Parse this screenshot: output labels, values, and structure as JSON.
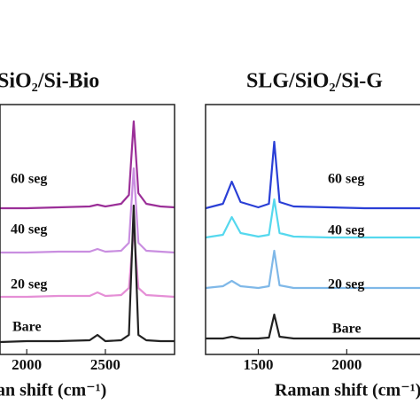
{
  "chart_data": [
    {
      "type": "line",
      "title": "SiO₂/Si-Bio",
      "x_label": "an shift (cm⁻¹)",
      "x": [
        1830,
        2000,
        2200,
        2400,
        2450,
        2500,
        2600,
        2650,
        2680,
        2710,
        2760,
        2850,
        2940
      ],
      "xlim": [
        1830,
        2940
      ],
      "xticks": [
        2000,
        2500
      ],
      "ylim": [
        0,
        282
      ],
      "series": [
        {
          "name": "60 seg",
          "color": "#9b2f98",
          "values": [
            165,
            165,
            166,
            167,
            169,
            167,
            170,
            180,
            263,
            182,
            170,
            167,
            166
          ]
        },
        {
          "name": "40 seg",
          "color": "#c98ee0",
          "values": [
            115,
            115,
            116,
            116,
            119,
            116,
            117,
            126,
            210,
            126,
            117,
            116,
            115
          ]
        },
        {
          "name": "20 seg",
          "color": "#e58fd6",
          "values": [
            65,
            65,
            66,
            66,
            70,
            66,
            67,
            75,
            142,
            75,
            67,
            66,
            65
          ]
        },
        {
          "name": "Bare",
          "color": "#222222",
          "values": [
            14,
            15,
            15,
            16,
            22,
            15,
            16,
            22,
            168,
            22,
            16,
            15,
            15
          ]
        }
      ]
    },
    {
      "type": "line",
      "title": "SLG/SiO₂/Si-G",
      "x_label": "Raman shift (cm⁻¹)",
      "x": [
        1202,
        1300,
        1350,
        1400,
        1500,
        1560,
        1590,
        1620,
        1700,
        1900,
        2100,
        2300,
        2424
      ],
      "xlim": [
        1202,
        2424
      ],
      "xticks": [
        1500,
        2000
      ],
      "ylim": [
        0,
        282
      ],
      "series": [
        {
          "name": "60 seg",
          "color": "#2a3fd6",
          "values": [
            165,
            170,
            195,
            172,
            166,
            170,
            240,
            172,
            167,
            166,
            165,
            165,
            165
          ]
        },
        {
          "name": "40 seg",
          "color": "#55d8ee",
          "values": [
            132,
            135,
            155,
            137,
            133,
            135,
            175,
            137,
            133,
            132,
            132,
            132,
            132
          ]
        },
        {
          "name": "20 seg",
          "color": "#7fb8e8",
          "values": [
            75,
            77,
            83,
            77,
            75,
            77,
            117,
            78,
            75,
            75,
            75,
            75,
            75
          ]
        },
        {
          "name": "Bare",
          "color": "#222222",
          "values": [
            18,
            18,
            20,
            18,
            18,
            19,
            45,
            20,
            18,
            18,
            18,
            18,
            18
          ]
        }
      ]
    }
  ]
}
